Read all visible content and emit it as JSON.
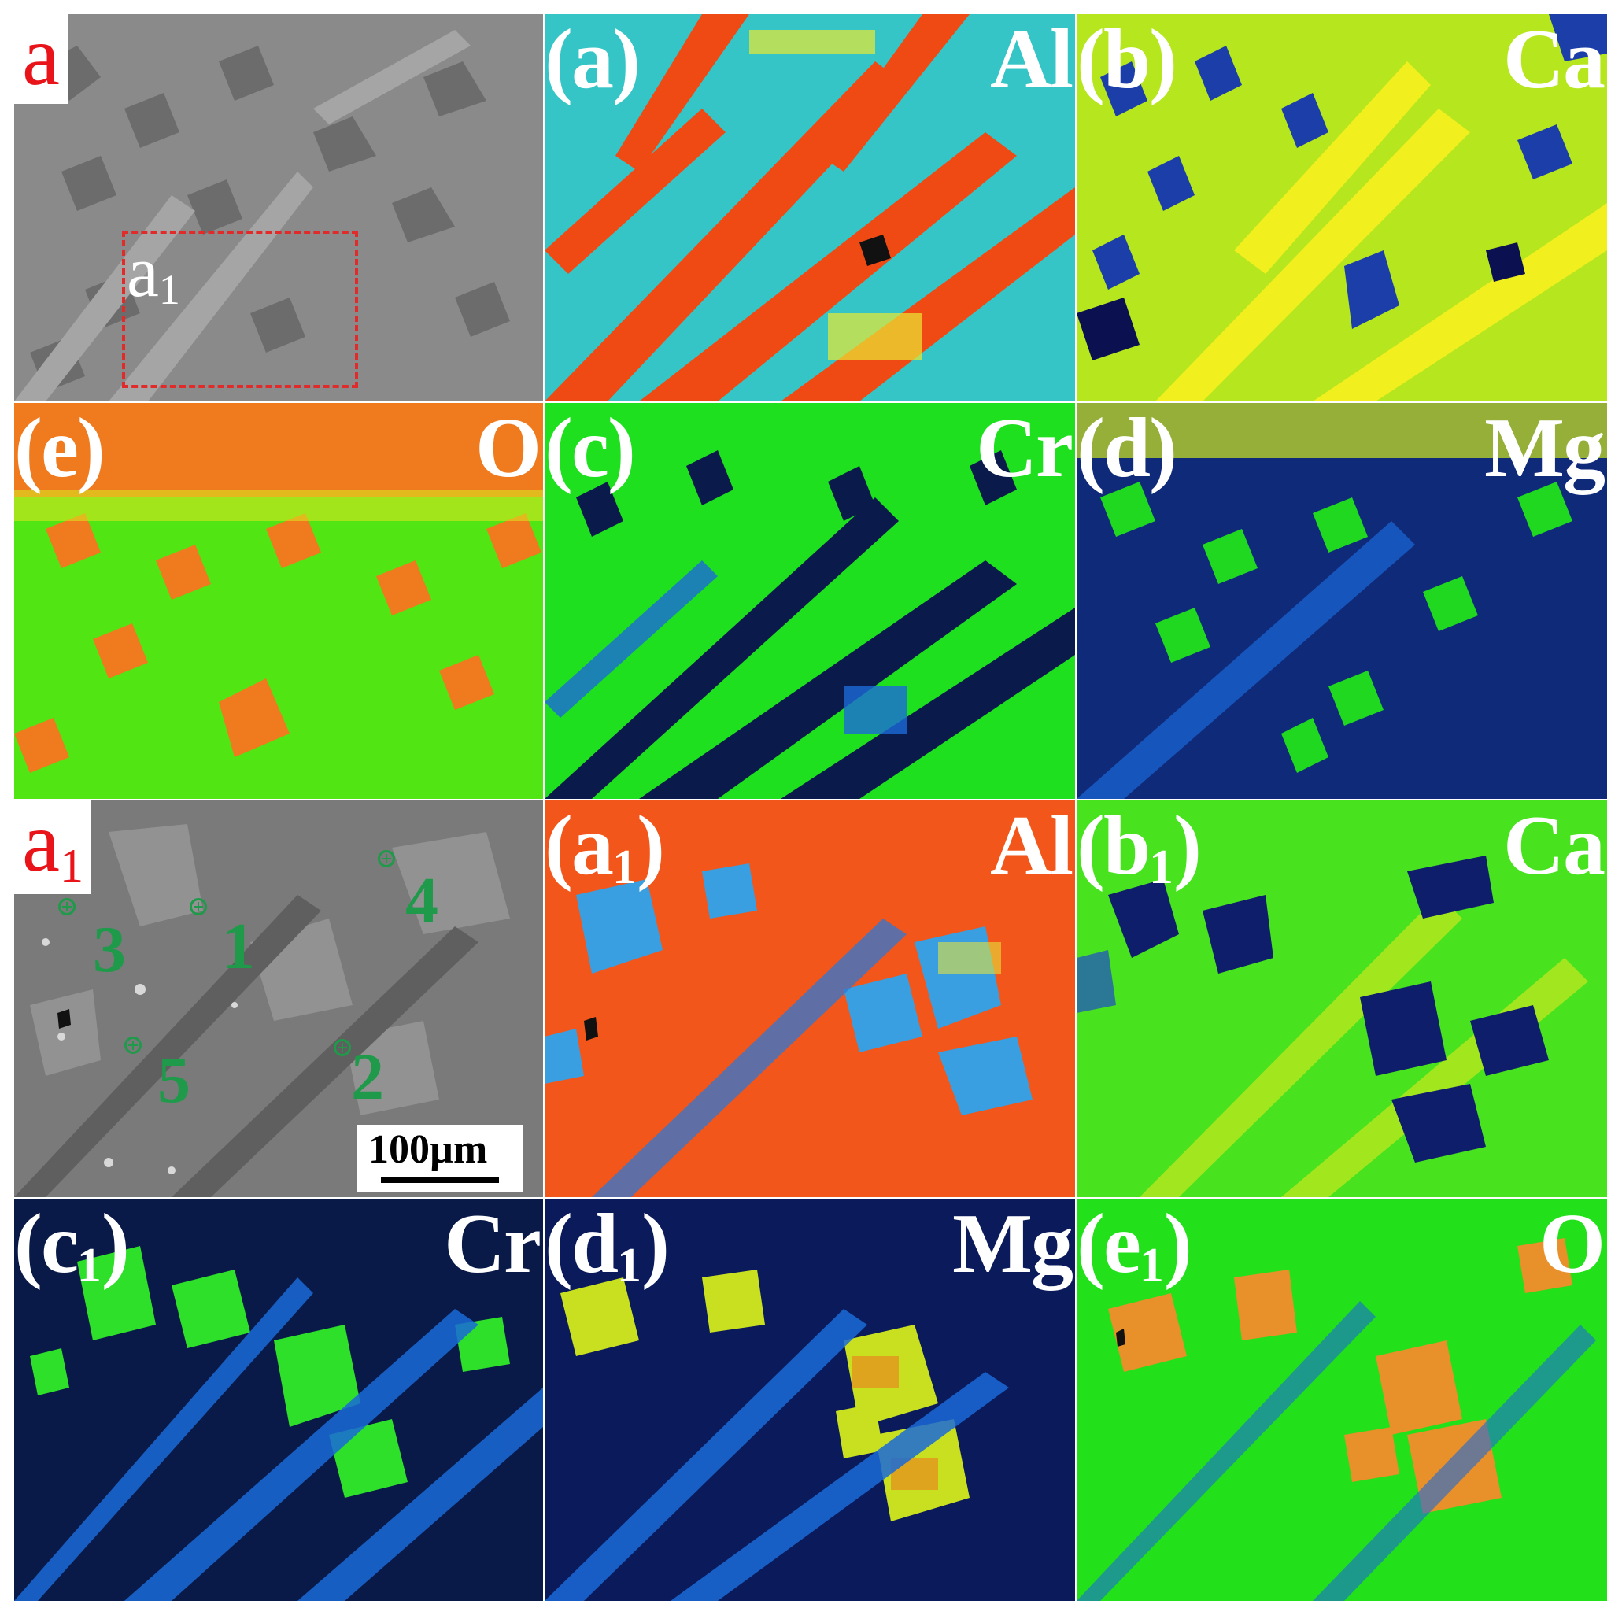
{
  "figure": {
    "panels": [
      {
        "id": "bse-overview",
        "corner_label": "a",
        "roi_label": "a",
        "roi_sub": "1"
      },
      {
        "id": "map-a",
        "label": "(a)",
        "element": "Al"
      },
      {
        "id": "map-b",
        "label": "(b)",
        "element": "Ca"
      },
      {
        "id": "map-e",
        "label": "(e)",
        "element": "O"
      },
      {
        "id": "map-c",
        "label": "(c)",
        "element": "Cr"
      },
      {
        "id": "map-d",
        "label": "(d)",
        "element": "Mg"
      },
      {
        "id": "bse-detail",
        "corner_label": "a",
        "corner_sub": "1",
        "points": [
          "1",
          "2",
          "3",
          "4",
          "5"
        ],
        "scale_bar": "100µm"
      },
      {
        "id": "map-a1",
        "label_pre": "(a",
        "label_sub": "1",
        "label_post": ")",
        "element": "Al"
      },
      {
        "id": "map-b1",
        "label_pre": "(b",
        "label_sub": "1",
        "label_post": ")",
        "element": "Ca"
      },
      {
        "id": "map-c1",
        "label_pre": "(c",
        "label_sub": "1",
        "label_post": ")",
        "element": "Cr"
      },
      {
        "id": "map-d1",
        "label_pre": "(d",
        "label_sub": "1",
        "label_post": ")",
        "element": "Mg"
      },
      {
        "id": "map-e1",
        "label_pre": "(e",
        "label_sub": "1",
        "label_post": ")",
        "element": "O"
      }
    ],
    "colors": {
      "corner_label": "#e8141a",
      "roi_border": "#e12a2a",
      "point_marker": "#1e9a4a",
      "map_label": "#ffffff"
    }
  }
}
